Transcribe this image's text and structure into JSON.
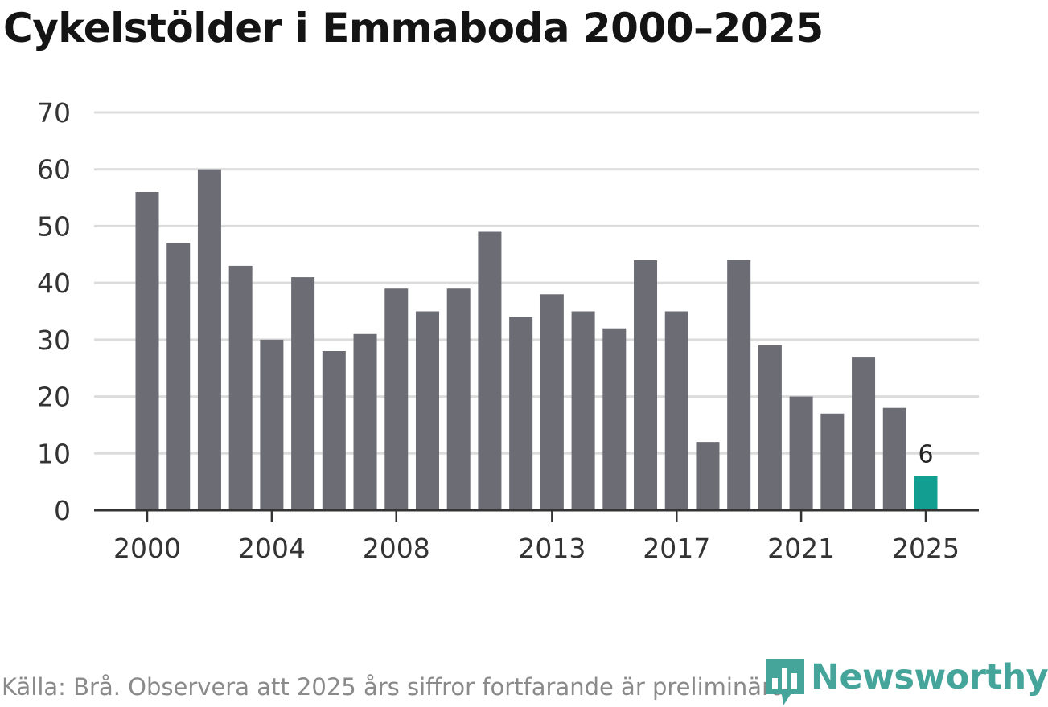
{
  "title": "Cykelstölder i Emmaboda 2000–2025",
  "source": "Källa: Brå. Observera att 2025 års siffror fortfarande är preliminära.",
  "logo": {
    "text": "Newsworthy",
    "icon": "bar-chart-icon"
  },
  "colors": {
    "bar": "#6c6c74",
    "highlight": "#139e92",
    "grid": "#dcdcdc",
    "axis": "#333333",
    "logo": "#45a59b"
  },
  "chart_data": {
    "type": "bar",
    "title": "Cykelstölder i Emmaboda 2000–2025",
    "xlabel": "",
    "ylabel": "",
    "categories": [
      2000,
      2001,
      2002,
      2003,
      2004,
      2005,
      2006,
      2007,
      2008,
      2009,
      2010,
      2011,
      2012,
      2013,
      2014,
      2015,
      2016,
      2017,
      2018,
      2019,
      2020,
      2021,
      2022,
      2023,
      2024,
      2025
    ],
    "values": [
      56,
      47,
      60,
      43,
      30,
      41,
      28,
      31,
      39,
      35,
      39,
      49,
      34,
      38,
      35,
      32,
      44,
      35,
      12,
      44,
      29,
      20,
      17,
      27,
      18,
      6
    ],
    "highlight": {
      "category": 2025,
      "label": "6"
    },
    "xticks": [
      "2000",
      "2004",
      "2008",
      "2013",
      "2017",
      "2021",
      "2025"
    ],
    "yticks": [
      0,
      10,
      20,
      30,
      40,
      50,
      60,
      70
    ],
    "ylim": [
      0,
      70
    ],
    "grid": true
  }
}
